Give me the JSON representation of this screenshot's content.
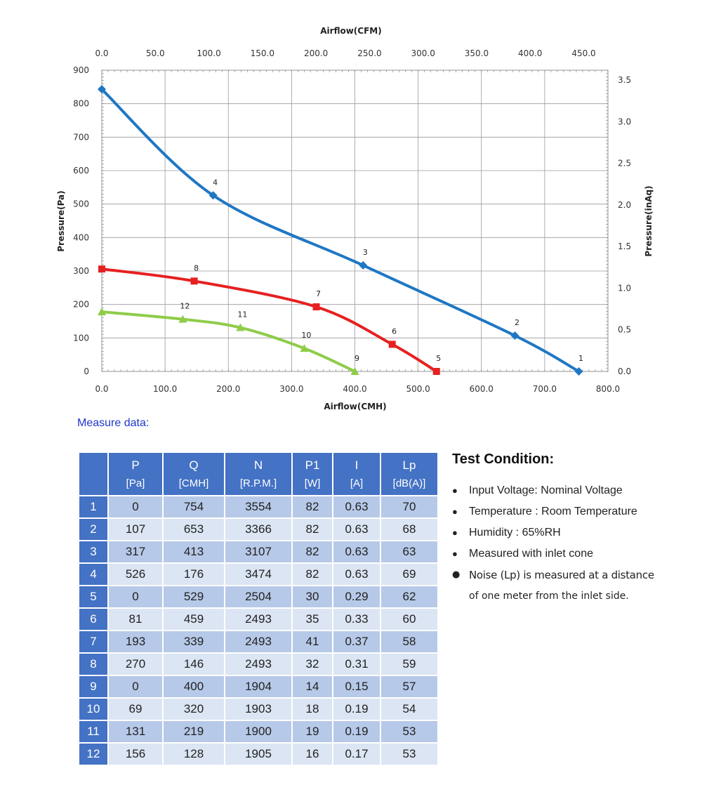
{
  "chart_data": {
    "type": "line",
    "top_axis_title": "Airflow(CFM)",
    "xlabel": "Airflow(CMH)",
    "ylabel": "Pressure(Pa)",
    "y2label": "Pressure(inAq)",
    "xlim": [
      0,
      800
    ],
    "ylim": [
      0,
      900
    ],
    "top_xlim": [
      0,
      450
    ],
    "y2lim": [
      0,
      3.5
    ],
    "x_ticks": [
      "0.0",
      "100.0",
      "200.0",
      "300.0",
      "400.0",
      "500.0",
      "600.0",
      "700.0",
      "800.0"
    ],
    "y_ticks": [
      "0",
      "100",
      "200",
      "300",
      "400",
      "500",
      "600",
      "700",
      "800",
      "900"
    ],
    "top_ticks": [
      "0.0",
      "50.0",
      "100.0",
      "150.0",
      "200.0",
      "250.0",
      "300.0",
      "350.0",
      "400.0",
      "450.0"
    ],
    "y2_ticks": [
      "0.0",
      "0.5",
      "1.0",
      "1.5",
      "2.0",
      "2.5",
      "3.0",
      "3.5"
    ],
    "grid": true,
    "series": [
      {
        "color": "#1f77c4",
        "marker": "diamond",
        "start": {
          "x": 0,
          "y": 843
        },
        "points": [
          {
            "label": "4",
            "x": 176,
            "y": 526
          },
          {
            "label": "3",
            "x": 413,
            "y": 317
          },
          {
            "label": "2",
            "x": 653,
            "y": 107
          },
          {
            "label": "1",
            "x": 754,
            "y": 0
          }
        ]
      },
      {
        "color": "#e62020",
        "marker": "square",
        "start": {
          "x": 0,
          "y": 306
        },
        "points": [
          {
            "label": "8",
            "x": 146,
            "y": 270
          },
          {
            "label": "7",
            "x": 339,
            "y": 193
          },
          {
            "label": "6",
            "x": 459,
            "y": 81
          },
          {
            "label": "5",
            "x": 529,
            "y": 0
          }
        ]
      },
      {
        "color": "#8fcc4a",
        "marker": "triangle",
        "start": {
          "x": 0,
          "y": 178
        },
        "points": [
          {
            "label": "12",
            "x": 128,
            "y": 156
          },
          {
            "label": "11",
            "x": 219,
            "y": 131
          },
          {
            "label": "10",
            "x": 320,
            "y": 69
          },
          {
            "label": "9",
            "x": 400,
            "y": 0
          }
        ]
      }
    ]
  },
  "measure_title": "Measure data:",
  "table": {
    "headers": [
      {
        "name": "P",
        "unit": "[Pa]"
      },
      {
        "name": "Q",
        "unit": "[CMH]"
      },
      {
        "name": "N",
        "unit": "[R.P.M.]"
      },
      {
        "name": "P1",
        "unit": "[W]"
      },
      {
        "name": "I",
        "unit": "[A]"
      },
      {
        "name": "Lp",
        "unit": "[dB(A)]"
      }
    ],
    "rows": [
      [
        "1",
        "0",
        "754",
        "3554",
        "82",
        "0.63",
        "70"
      ],
      [
        "2",
        "107",
        "653",
        "3366",
        "82",
        "0.63",
        "68"
      ],
      [
        "3",
        "317",
        "413",
        "3107",
        "82",
        "0.63",
        "63"
      ],
      [
        "4",
        "526",
        "176",
        "3474",
        "82",
        "0.63",
        "69"
      ],
      [
        "5",
        "0",
        "529",
        "2504",
        "30",
        "0.29",
        "62"
      ],
      [
        "6",
        "81",
        "459",
        "2493",
        "35",
        "0.33",
        "60"
      ],
      [
        "7",
        "193",
        "339",
        "2493",
        "41",
        "0.37",
        "58"
      ],
      [
        "8",
        "270",
        "146",
        "2493",
        "32",
        "0.31",
        "59"
      ],
      [
        "9",
        "0",
        "400",
        "1904",
        "14",
        "0.15",
        "57"
      ],
      [
        "10",
        "69",
        "320",
        "1903",
        "18",
        "0.19",
        "54"
      ],
      [
        "11",
        "131",
        "219",
        "1900",
        "19",
        "0.19",
        "53"
      ],
      [
        "12",
        "156",
        "128",
        "1905",
        "16",
        "0.17",
        "53"
      ]
    ]
  },
  "test_condition": {
    "title": "Test Condition:",
    "items": [
      "Input Voltage: Nominal Voltage",
      "Temperature : Room Temperature",
      "Humidity : 65%RH",
      "Measured with inlet cone",
      "Noise (Lp) is measured at a distance"
    ],
    "continuation": "of one meter from the inlet side."
  }
}
